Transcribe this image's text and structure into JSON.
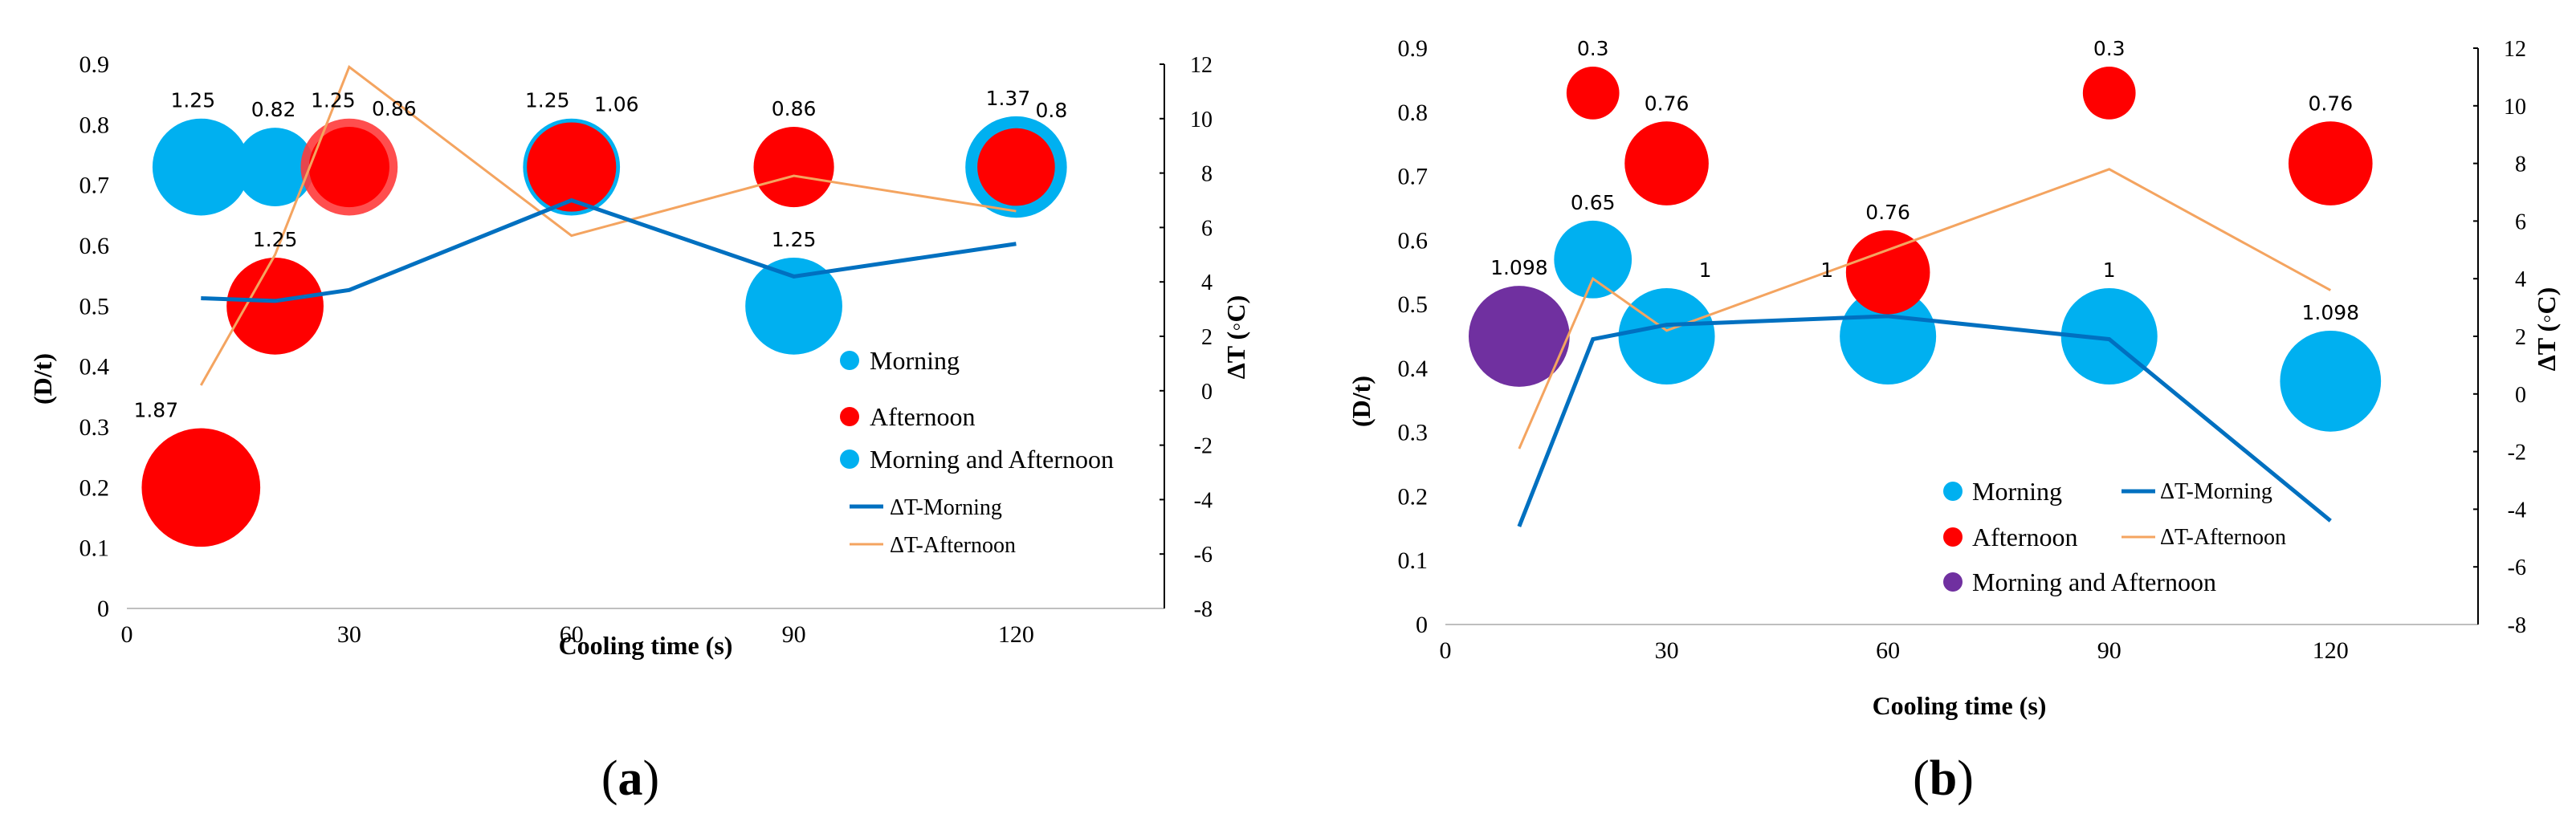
{
  "colors": {
    "morning": "#00B0F0",
    "afternoon": "#FF0000",
    "both_a": "#00B0F0",
    "both_b": "#7030A0",
    "line_morning": "#0070C0",
    "line_afternoon": "#F4A460"
  },
  "chart_data": [
    {
      "type": "bubble",
      "panel": "a",
      "caption_letter": "a",
      "xlabel": "Cooling time (s)",
      "ylabel": "(D/t)",
      "y2label": "ΔT (◦C)",
      "xlim": [
        0,
        140
      ],
      "x_ticks": [
        0,
        30,
        60,
        90,
        120
      ],
      "ylim": [
        0,
        0.9
      ],
      "y_ticks": [
        "0",
        "0.1",
        "0.2",
        "0.3",
        "0.4",
        "0.5",
        "0.6",
        "0.7",
        "0.8",
        "0.9"
      ],
      "y2lim": [
        -8,
        12
      ],
      "y2_ticks": [
        "-8",
        "-6",
        "-4",
        "-2",
        "0",
        "2",
        "4",
        "6",
        "8",
        "10",
        "12"
      ],
      "legend": {
        "bubbles": [
          "Morning",
          "Afternoon",
          "Morning and Afternoon"
        ],
        "lines": [
          "ΔT-Morning",
          "ΔT-Afternoon"
        ]
      },
      "bubbles": [
        {
          "series": "both",
          "x": 10,
          "y": 0.73,
          "size": 1.25,
          "label": "1.25"
        },
        {
          "series": "both",
          "x": 20,
          "y": 0.73,
          "size": 0.82,
          "label": "0.82"
        },
        {
          "series": "afternoon_outer",
          "x": 30,
          "y": 0.73,
          "size": 1.25,
          "label": "1.25"
        },
        {
          "series": "afternoon",
          "x": 30,
          "y": 0.73,
          "size": 0.86,
          "label": "0.86"
        },
        {
          "series": "both",
          "x": 60,
          "y": 0.73,
          "size": 1.25,
          "label": "1.25"
        },
        {
          "series": "afternoon",
          "x": 60,
          "y": 0.73,
          "size": 1.06,
          "label": "1.06"
        },
        {
          "series": "afternoon",
          "x": 90,
          "y": 0.73,
          "size": 0.86,
          "label": "0.86"
        },
        {
          "series": "both",
          "x": 120,
          "y": 0.73,
          "size": 1.37,
          "label": "1.37"
        },
        {
          "series": "afternoon",
          "x": 120,
          "y": 0.73,
          "size": 0.8,
          "label": "0.8"
        },
        {
          "series": "afternoon",
          "x": 20,
          "y": 0.5,
          "size": 1.25,
          "label": "1.25"
        },
        {
          "series": "morning",
          "x": 90,
          "y": 0.5,
          "size": 1.25,
          "label": "1.25"
        },
        {
          "series": "afternoon",
          "x": 10,
          "y": 0.2,
          "size": 1.87,
          "label": "1.87"
        }
      ],
      "dt_morning": {
        "x": [
          10,
          20,
          30,
          60,
          90,
          120
        ],
        "y": [
          3.4,
          3.3,
          3.7,
          7.0,
          4.2,
          5.4
        ]
      },
      "dt_afternoon": {
        "x": [
          10,
          20,
          30,
          60,
          90,
          120
        ],
        "y": [
          0.2,
          5.0,
          11.9,
          5.7,
          7.9,
          6.6
        ]
      }
    },
    {
      "type": "bubble",
      "panel": "b",
      "caption_letter": "b",
      "xlabel": "Cooling time (s)",
      "ylabel": "(D/t)",
      "y2label": "ΔT (◦C)",
      "xlim": [
        0,
        140
      ],
      "x_ticks": [
        0,
        30,
        60,
        90,
        120
      ],
      "ylim": [
        0,
        0.9
      ],
      "y_ticks": [
        "0",
        "0.1",
        "0.2",
        "0.3",
        "0.4",
        "0.5",
        "0.6",
        "0.7",
        "0.8",
        "0.9"
      ],
      "y2lim": [
        -8,
        12
      ],
      "y2_ticks": [
        "-8",
        "-6",
        "-4",
        "-2",
        "0",
        "2",
        "4",
        "6",
        "8",
        "10",
        "12"
      ],
      "legend": {
        "bubbles": [
          "Morning",
          "Afternoon",
          "Morning and Afternoon"
        ],
        "lines": [
          "ΔT-Morning",
          "ΔT-Afternoon"
        ]
      },
      "bubbles": [
        {
          "series": "afternoon",
          "x": 20,
          "y": 0.83,
          "size": 0.3,
          "label": "0.3"
        },
        {
          "series": "afternoon",
          "x": 30,
          "y": 0.72,
          "size": 0.76,
          "label": "0.76"
        },
        {
          "series": "afternoon",
          "x": 90,
          "y": 0.83,
          "size": 0.3,
          "label": "0.3"
        },
        {
          "series": "afternoon",
          "x": 120,
          "y": 0.72,
          "size": 0.76,
          "label": "0.76"
        },
        {
          "series": "morning",
          "x": 20,
          "y": 0.57,
          "size": 0.65,
          "label": "0.65"
        },
        {
          "series": "morning",
          "x": 30,
          "y": 0.45,
          "size": 1.0,
          "label": "1"
        },
        {
          "series": "morning",
          "x": 60,
          "y": 0.45,
          "size": 1.0,
          "label": "1"
        },
        {
          "series": "afternoon",
          "x": 60,
          "y": 0.55,
          "size": 0.76,
          "label": "0.76"
        },
        {
          "series": "morning",
          "x": 90,
          "y": 0.45,
          "size": 1.0,
          "label": "1"
        },
        {
          "series": "morning",
          "x": 120,
          "y": 0.38,
          "size": 1.098,
          "label": "1.098"
        },
        {
          "series": "both",
          "x": 10,
          "y": 0.45,
          "size": 1.098,
          "label": "1.098"
        }
      ],
      "dt_morning": {
        "x": [
          10,
          20,
          30,
          60,
          90,
          120
        ],
        "y": [
          -4.6,
          1.9,
          2.4,
          2.7,
          1.9,
          -4.4
        ]
      },
      "dt_afternoon": {
        "x": [
          10,
          20,
          30,
          60,
          90,
          120
        ],
        "y": [
          -1.9,
          4.0,
          2.2,
          5.0,
          7.8,
          3.6
        ]
      }
    }
  ]
}
